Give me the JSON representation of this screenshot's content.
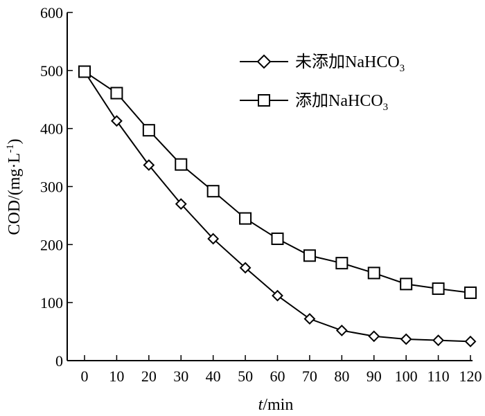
{
  "chart_data": {
    "type": "line",
    "xlabel_italic": "t",
    "xlabel_rest": "/min",
    "ylabel": "COD/(mg·L",
    "ylabel_sup": "-1",
    "ylabel_close": ")",
    "xlim": [
      0,
      120
    ],
    "ylim": [
      0,
      600
    ],
    "x": [
      0,
      10,
      20,
      30,
      40,
      50,
      60,
      70,
      80,
      90,
      100,
      110,
      120
    ],
    "x_tick_labels": [
      "0",
      "10",
      "20",
      "30",
      "40",
      "50",
      "60",
      "70",
      "80",
      "90",
      "100",
      "110",
      "120"
    ],
    "y_tick_labels": [
      "0",
      "100",
      "200",
      "300",
      "400",
      "500",
      "600"
    ],
    "y_ticks": [
      0,
      100,
      200,
      300,
      400,
      500,
      600
    ],
    "legend_position": "top-right",
    "grid": false,
    "series": [
      {
        "name": "未添加NaHCO3",
        "name_main": "未添加NaHCO",
        "name_sub": "3",
        "marker": "diamond",
        "values": [
          498,
          413,
          337,
          270,
          210,
          160,
          112,
          72,
          52,
          42,
          37,
          35,
          33
        ]
      },
      {
        "name": "添加NaHCO3",
        "name_main": "添加NaHCO",
        "name_sub": "3",
        "marker": "square",
        "values": [
          498,
          461,
          397,
          338,
          292,
          245,
          210,
          181,
          168,
          151,
          132,
          124,
          117
        ]
      }
    ]
  }
}
